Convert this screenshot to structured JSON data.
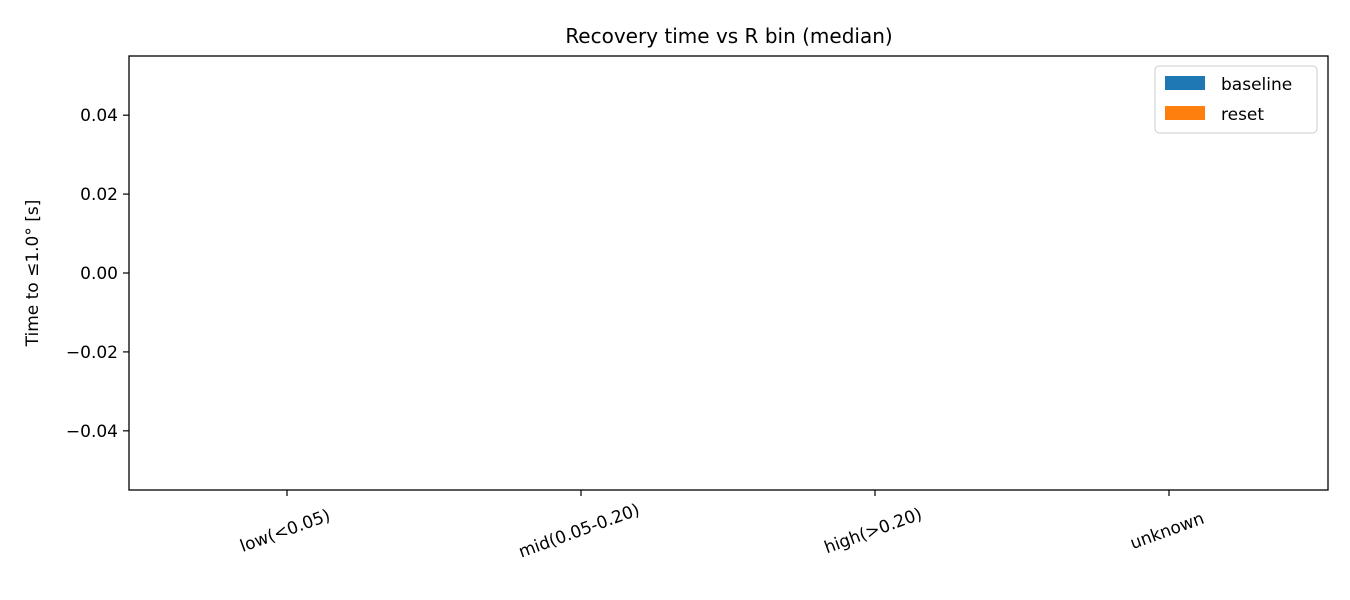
{
  "chart_data": {
    "type": "bar",
    "title": "Recovery time vs R bin (median)",
    "xlabel": "",
    "ylabel": "Time to ≤1.0° [s]",
    "categories": [
      "low(<0.05)",
      "mid(0.05-0.20)",
      "high(>0.20)",
      "unknown"
    ],
    "series": [
      {
        "name": "baseline",
        "color": "#1f77b4",
        "values": [
          null,
          null,
          null,
          null
        ]
      },
      {
        "name": "reset",
        "color": "#ff7f0e",
        "values": [
          null,
          null,
          null,
          null
        ]
      }
    ],
    "ylim": [
      -0.055,
      0.055
    ],
    "yticks": [
      -0.04,
      -0.02,
      0.0,
      0.02,
      0.04
    ],
    "ytick_labels": [
      "−0.04",
      "−0.02",
      "0.00",
      "0.02",
      "0.04"
    ],
    "grid": false,
    "legend_position": "top-right"
  }
}
